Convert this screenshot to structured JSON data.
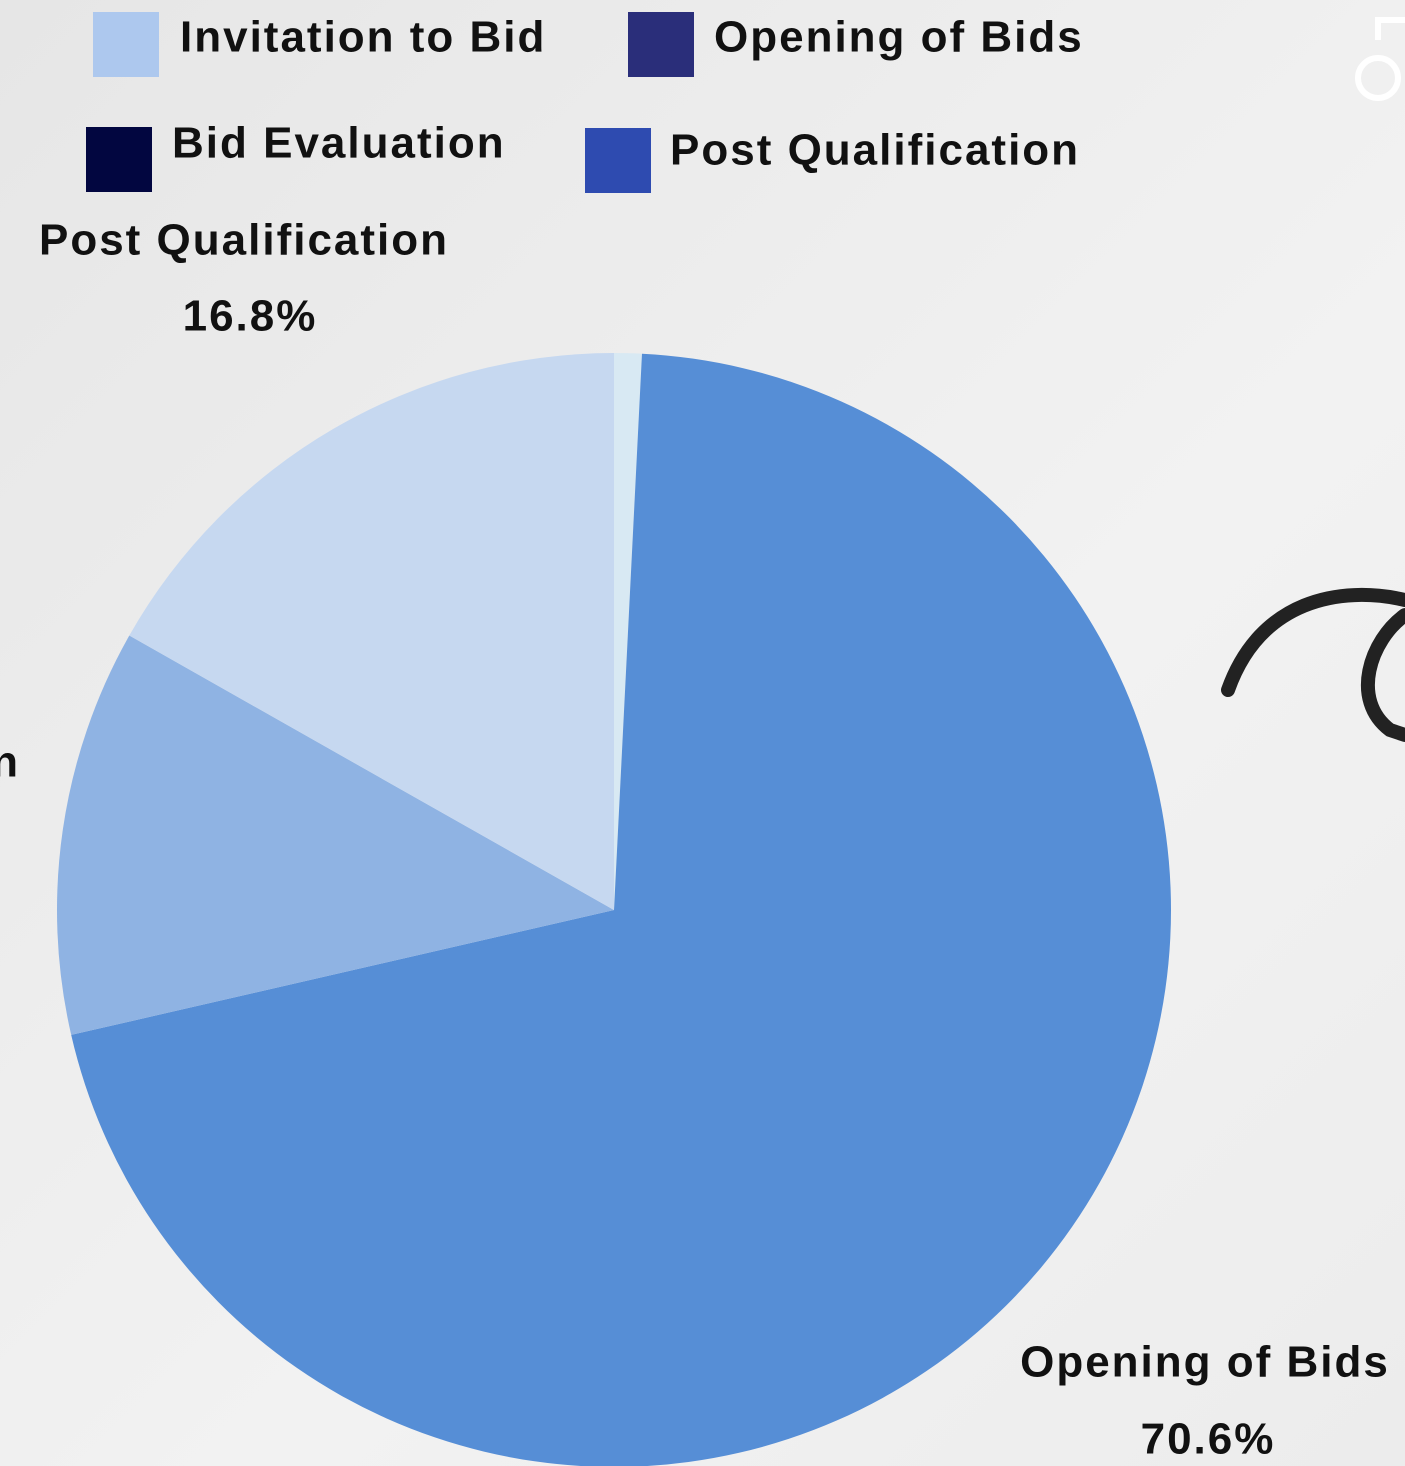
{
  "chart_data": {
    "type": "pie",
    "categories": [
      "Invitation to Bid",
      "Opening of Bids",
      "Bid Evaluation",
      "Post Qualification"
    ],
    "values": [
      0.8,
      70.6,
      11.8,
      16.8
    ],
    "value_labels": [
      null,
      "70.6%",
      null,
      "16.8%"
    ],
    "colors": [
      "#d8e9f3",
      "#568ed6",
      "#8fb3e3",
      "#c6d8f0"
    ],
    "legend_colors": [
      "#adc8ee",
      "#2a2e7a",
      "#020640",
      "#2e4bb0"
    ]
  }
}
